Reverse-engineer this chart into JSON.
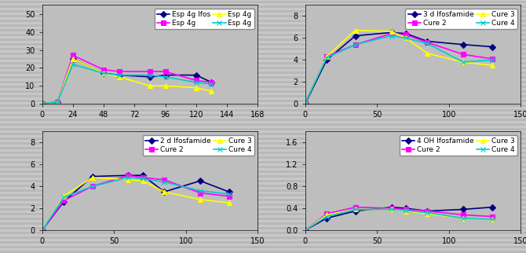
{
  "plot1": {
    "xlim": [
      0,
      168
    ],
    "ylim": [
      0,
      55
    ],
    "xticks": [
      0,
      24,
      48,
      72,
      96,
      120,
      144,
      168
    ],
    "yticks": [
      0,
      10,
      20,
      30,
      40,
      50
    ],
    "series": [
      {
        "label": "Esp 4g Ifos",
        "color": "#000080",
        "marker": "D",
        "x": [
          0,
          12,
          24,
          48,
          60,
          84,
          96,
          120,
          132
        ],
        "y": [
          0,
          1,
          25,
          17,
          16,
          15,
          16,
          16,
          12
        ]
      },
      {
        "label": "Esp 4g",
        "color": "#FF00FF",
        "marker": "s",
        "x": [
          0,
          12,
          24,
          48,
          60,
          84,
          96,
          120,
          132
        ],
        "y": [
          0,
          1,
          27,
          19,
          18,
          18,
          18,
          13,
          12
        ]
      },
      {
        "label": "Esp 4g",
        "color": "#FFFF00",
        "marker": "^",
        "x": [
          0,
          12,
          24,
          48,
          60,
          84,
          96,
          120,
          132
        ],
        "y": [
          0,
          1,
          25,
          17,
          15,
          10,
          10,
          9,
          7
        ]
      },
      {
        "label": "Esp 4g",
        "color": "#00CCCC",
        "marker": "x",
        "x": [
          0,
          12,
          24,
          48,
          60,
          84,
          96,
          120,
          132
        ],
        "y": [
          0,
          1,
          22,
          17,
          16,
          16,
          15,
          12,
          11
        ]
      }
    ]
  },
  "plot2": {
    "xlim": [
      0,
      150
    ],
    "ylim": [
      0,
      9
    ],
    "xticks": [
      0,
      50,
      100,
      150
    ],
    "yticks": [
      0,
      2,
      4,
      6,
      8
    ],
    "series": [
      {
        "label": "3 d Ifosfamide",
        "color": "#000080",
        "marker": "D",
        "x": [
          0,
          15,
          35,
          60,
          70,
          85,
          110,
          130
        ],
        "y": [
          0,
          4.0,
          6.2,
          6.5,
          6.4,
          5.7,
          5.4,
          5.2
        ]
      },
      {
        "label": "Cure 2",
        "color": "#FF00FF",
        "marker": "s",
        "x": [
          0,
          15,
          35,
          60,
          70,
          85,
          110,
          130
        ],
        "y": [
          0.1,
          4.3,
          5.4,
          6.4,
          6.3,
          5.6,
          4.5,
          4.1
        ]
      },
      {
        "label": "Cure 3",
        "color": "#FFFF00",
        "marker": "^",
        "x": [
          0,
          15,
          35,
          60,
          70,
          85,
          110,
          130
        ],
        "y": [
          0.1,
          4.3,
          6.7,
          6.6,
          6.0,
          4.6,
          3.8,
          3.5
        ]
      },
      {
        "label": "Cure 4",
        "color": "#00CCCC",
        "marker": "x",
        "x": [
          0,
          15,
          35,
          60,
          70,
          85,
          110,
          130
        ],
        "y": [
          0.1,
          4.2,
          5.4,
          6.2,
          6.0,
          5.5,
          3.8,
          4.0
        ]
      }
    ]
  },
  "plot3": {
    "xlim": [
      0,
      150
    ],
    "ylim": [
      0,
      9
    ],
    "xticks": [
      0,
      50,
      100,
      150
    ],
    "yticks": [
      0,
      2,
      4,
      6,
      8
    ],
    "series": [
      {
        "label": "2 d Ifosfamide",
        "color": "#000080",
        "marker": "D",
        "x": [
          0,
          15,
          35,
          60,
          70,
          85,
          110,
          130
        ],
        "y": [
          0,
          2.6,
          4.9,
          5.0,
          5.0,
          3.5,
          4.5,
          3.5
        ]
      },
      {
        "label": "Cure 2",
        "color": "#FF00FF",
        "marker": "s",
        "x": [
          0,
          15,
          35,
          60,
          70,
          85,
          110,
          130
        ],
        "y": [
          0,
          2.7,
          4.0,
          5.0,
          4.8,
          4.6,
          3.4,
          3.1
        ]
      },
      {
        "label": "Cure 3",
        "color": "#FFFF00",
        "marker": "^",
        "x": [
          0,
          15,
          35,
          60,
          70,
          85,
          110,
          130
        ],
        "y": [
          0,
          3.1,
          4.8,
          4.6,
          4.5,
          3.5,
          2.8,
          2.5
        ]
      },
      {
        "label": "Cure 4",
        "color": "#00CCCC",
        "marker": "x",
        "x": [
          0,
          15,
          35,
          60,
          70,
          85,
          110,
          130
        ],
        "y": [
          0,
          3.0,
          4.0,
          4.8,
          4.7,
          4.4,
          3.6,
          3.3
        ]
      }
    ]
  },
  "plot4": {
    "xlim": [
      0,
      150
    ],
    "ylim": [
      0,
      1.8
    ],
    "xticks": [
      0,
      50,
      100,
      150
    ],
    "yticks": [
      0,
      0.4,
      0.8,
      1.2,
      1.6
    ],
    "series": [
      {
        "label": "4 OH Ifosfamide",
        "color": "#000080",
        "marker": "D",
        "x": [
          0,
          15,
          35,
          60,
          70,
          85,
          110,
          130
        ],
        "y": [
          0,
          0.22,
          0.35,
          0.42,
          0.4,
          0.35,
          0.38,
          0.42
        ]
      },
      {
        "label": "Cure 2",
        "color": "#FF00FF",
        "marker": "s",
        "x": [
          0,
          15,
          35,
          60,
          70,
          85,
          110,
          130
        ],
        "y": [
          0,
          0.3,
          0.42,
          0.4,
          0.38,
          0.35,
          0.28,
          0.25
        ]
      },
      {
        "label": "Cure 3",
        "color": "#FFFF00",
        "marker": "^",
        "x": [
          0,
          15,
          35,
          60,
          70,
          85,
          110,
          130
        ],
        "y": [
          0,
          0.28,
          0.38,
          0.38,
          0.35,
          0.3,
          0.22,
          0.2
        ]
      },
      {
        "label": "Cure 4",
        "color": "#00CCCC",
        "marker": "x",
        "x": [
          0,
          15,
          35,
          60,
          70,
          85,
          110,
          130
        ],
        "y": [
          0,
          0.25,
          0.38,
          0.38,
          0.36,
          0.32,
          0.22,
          0.2
        ]
      }
    ]
  },
  "plot_bg": "#BEBEBE",
  "fig_bg": "#C8C8C8",
  "linewidth": 1.2,
  "markersize": 4,
  "tick_fontsize": 7,
  "legend_fontsize": 6.5
}
